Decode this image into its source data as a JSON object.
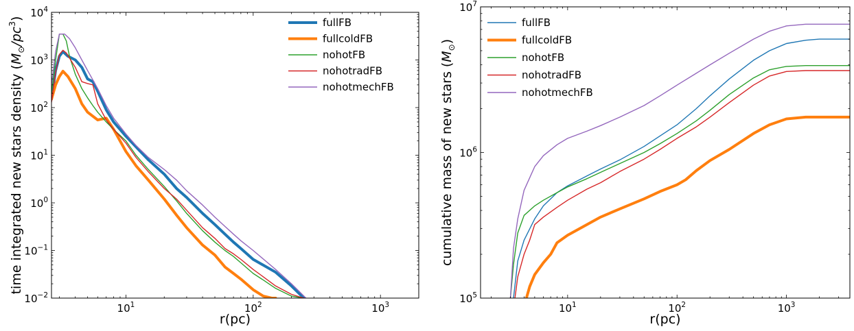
{
  "chart_data": [
    {
      "type": "line",
      "xlabel": "r(pc)",
      "ylabel": "time integrated new stars density ($M_{\\odot}/pc^3$)",
      "xscale": "log",
      "yscale": "log",
      "xlim": [
        2.6,
        2000
      ],
      "ylim": [
        0.01,
        10000
      ],
      "legend_position": "top-right",
      "x_ticks": [
        {
          "v": 10,
          "e": "1"
        },
        {
          "v": 100,
          "e": "2"
        },
        {
          "v": 1000,
          "e": "3"
        }
      ],
      "y_ticks": [
        {
          "v": 0.01,
          "e": "−2"
        },
        {
          "v": 0.1,
          "e": "−1"
        },
        {
          "v": 1,
          "e": "0"
        },
        {
          "v": 10,
          "e": "1"
        },
        {
          "v": 100,
          "e": "2"
        },
        {
          "v": 1000,
          "e": "3"
        },
        {
          "v": 10000,
          "e": "4"
        }
      ],
      "series": [
        {
          "name": "fullFB",
          "color": "#1f77b4",
          "width": 4,
          "x": [
            2.6,
            2.8,
            3.0,
            3.2,
            3.5,
            4.0,
            4.5,
            5.0,
            5.5,
            6.0,
            7.0,
            8.0,
            10,
            12,
            15,
            20,
            25,
            30,
            40,
            50,
            60,
            70,
            80,
            100,
            150,
            200,
            250
          ],
          "y": [
            150,
            600,
            1200,
            1500,
            1200,
            1000,
            700,
            400,
            350,
            220,
            90,
            50,
            25,
            15,
            8,
            4,
            2,
            1.3,
            0.6,
            0.35,
            0.22,
            0.15,
            0.11,
            0.065,
            0.035,
            0.018,
            0.01
          ]
        },
        {
          "name": "fullcoldFB",
          "color": "#ff7f0e",
          "width": 4,
          "x": [
            2.6,
            2.8,
            3.0,
            3.2,
            3.5,
            4.0,
            4.5,
            5.0,
            6.0,
            7.0,
            8.0,
            10,
            12,
            15,
            20,
            25,
            30,
            40,
            50,
            60,
            70,
            80,
            100,
            120,
            140,
            150
          ],
          "y": [
            150,
            300,
            450,
            580,
            450,
            250,
            120,
            80,
            55,
            60,
            35,
            12,
            6,
            3,
            1.2,
            0.55,
            0.3,
            0.13,
            0.08,
            0.045,
            0.033,
            0.025,
            0.015,
            0.011,
            0.01,
            0.01
          ]
        },
        {
          "name": "nohotFB",
          "color": "#2ca02c",
          "width": 1.4,
          "x": [
            2.6,
            2.8,
            3.0,
            3.2,
            3.4,
            3.6,
            4.0,
            4.5,
            5.0,
            5.5,
            6.0,
            7.0,
            8.0,
            10,
            12,
            15,
            20,
            25,
            30,
            40,
            50,
            60,
            70,
            80,
            100,
            120,
            150,
            200,
            250
          ],
          "y": [
            200,
            1000,
            3500,
            3500,
            2500,
            1200,
            500,
            250,
            160,
            110,
            80,
            50,
            35,
            20,
            10,
            5,
            2.2,
            1.1,
            0.6,
            0.26,
            0.15,
            0.1,
            0.075,
            0.055,
            0.033,
            0.024,
            0.016,
            0.011,
            0.01
          ]
        },
        {
          "name": "nohotradFB",
          "color": "#d62728",
          "width": 1.4,
          "x": [
            2.6,
            2.8,
            3.0,
            3.2,
            3.4,
            3.6,
            4.0,
            4.5,
            5.0,
            5.5,
            6.0,
            7.0,
            8.0,
            10,
            12,
            15,
            20,
            25,
            30,
            40,
            50,
            60,
            70,
            80,
            100,
            120,
            150,
            200,
            250
          ],
          "y": [
            130,
            550,
            1300,
            1600,
            1400,
            1100,
            700,
            350,
            320,
            300,
            120,
            55,
            35,
            18,
            9,
            4.5,
            2,
            1.2,
            0.7,
            0.3,
            0.18,
            0.11,
            0.085,
            0.065,
            0.04,
            0.028,
            0.018,
            0.012,
            0.01
          ]
        },
        {
          "name": "nohotmechFB",
          "color": "#9467bd",
          "width": 1.4,
          "x": [
            2.6,
            2.8,
            3.0,
            3.3,
            3.6,
            4.0,
            4.5,
            5.0,
            5.5,
            6.0,
            7.0,
            8.0,
            10,
            12,
            15,
            20,
            25,
            30,
            40,
            50,
            60,
            70,
            80,
            100,
            150,
            200,
            260
          ],
          "y": [
            300,
            1500,
            3500,
            3500,
            2800,
            1800,
            1000,
            600,
            380,
            250,
            110,
            60,
            28,
            16,
            9,
            5,
            3,
            1.8,
            0.9,
            0.5,
            0.32,
            0.22,
            0.16,
            0.1,
            0.04,
            0.02,
            0.01
          ]
        }
      ]
    },
    {
      "type": "line",
      "xlabel": "r(pc)",
      "ylabel": "cumulative mass of new stars ($M_{\\odot}$)",
      "xscale": "log",
      "yscale": "log",
      "xlim": [
        1.6,
        3800
      ],
      "ylim": [
        100000,
        10000000
      ],
      "legend_position": "top-left",
      "x_ticks": [
        {
          "v": 10,
          "e": "1"
        },
        {
          "v": 100,
          "e": "2"
        },
        {
          "v": 1000,
          "e": "3"
        }
      ],
      "y_ticks": [
        {
          "v": 100000,
          "e": "5"
        },
        {
          "v": 1000000,
          "e": "6"
        },
        {
          "v": 10000000,
          "e": "7"
        }
      ],
      "series": [
        {
          "name": "fullFB",
          "color": "#1f77b4",
          "width": 1.4,
          "x": [
            3.2,
            3.5,
            4,
            5,
            6,
            8,
            10,
            15,
            20,
            30,
            50,
            70,
            100,
            150,
            200,
            300,
            500,
            700,
            1000,
            1500,
            2000,
            3800
          ],
          "y": [
            100000,
            180000,
            250000,
            350000,
            430000,
            530000,
            590000,
            690000,
            770000,
            890000,
            1100000,
            1300000,
            1550000,
            2000000,
            2450000,
            3200000,
            4300000,
            5000000,
            5600000,
            5900000,
            6000000,
            6000000
          ]
        },
        {
          "name": "fullcoldFB",
          "color": "#ff7f0e",
          "width": 4,
          "x": [
            4.2,
            4.5,
            5,
            6,
            7,
            8,
            10,
            15,
            20,
            30,
            50,
            70,
            100,
            120,
            150,
            200,
            300,
            500,
            700,
            1000,
            1500,
            2000,
            3800
          ],
          "y": [
            100000,
            120000,
            145000,
            175000,
            200000,
            240000,
            270000,
            320000,
            360000,
            410000,
            480000,
            540000,
            600000,
            650000,
            750000,
            880000,
            1050000,
            1350000,
            1550000,
            1700000,
            1750000,
            1750000,
            1750000
          ]
        },
        {
          "name": "nohotFB",
          "color": "#2ca02c",
          "width": 1.4,
          "x": [
            3.0,
            3.2,
            3.5,
            4,
            5,
            6,
            8,
            10,
            15,
            20,
            30,
            50,
            70,
            100,
            150,
            200,
            300,
            500,
            700,
            1000,
            1500,
            2000,
            3800
          ],
          "y": [
            100000,
            170000,
            280000,
            370000,
            430000,
            470000,
            530000,
            580000,
            660000,
            730000,
            840000,
            1000000,
            1150000,
            1350000,
            1650000,
            1950000,
            2500000,
            3250000,
            3700000,
            3900000,
            3950000,
            3950000,
            3950000
          ]
        },
        {
          "name": "nohotradFB",
          "color": "#d62728",
          "width": 1.4,
          "x": [
            3.3,
            3.5,
            4,
            4.5,
            5,
            6,
            8,
            10,
            15,
            20,
            30,
            50,
            70,
            100,
            150,
            200,
            300,
            500,
            700,
            1000,
            1500,
            2000,
            3800
          ],
          "y": [
            100000,
            140000,
            200000,
            250000,
            320000,
            360000,
            420000,
            470000,
            560000,
            620000,
            740000,
            900000,
            1050000,
            1250000,
            1500000,
            1750000,
            2200000,
            2900000,
            3350000,
            3600000,
            3650000,
            3650000,
            3650000
          ]
        },
        {
          "name": "nohotmechFB",
          "color": "#9467bd",
          "width": 1.4,
          "x": [
            3.0,
            3.2,
            3.5,
            4,
            5,
            6,
            8,
            10,
            15,
            20,
            30,
            50,
            70,
            100,
            150,
            200,
            300,
            500,
            700,
            1000,
            1500,
            2000,
            3800
          ],
          "y": [
            100000,
            220000,
            350000,
            550000,
            800000,
            950000,
            1130000,
            1250000,
            1400000,
            1530000,
            1750000,
            2100000,
            2450000,
            2900000,
            3500000,
            4000000,
            4800000,
            6000000,
            6800000,
            7400000,
            7600000,
            7600000,
            7600000
          ]
        }
      ]
    }
  ]
}
